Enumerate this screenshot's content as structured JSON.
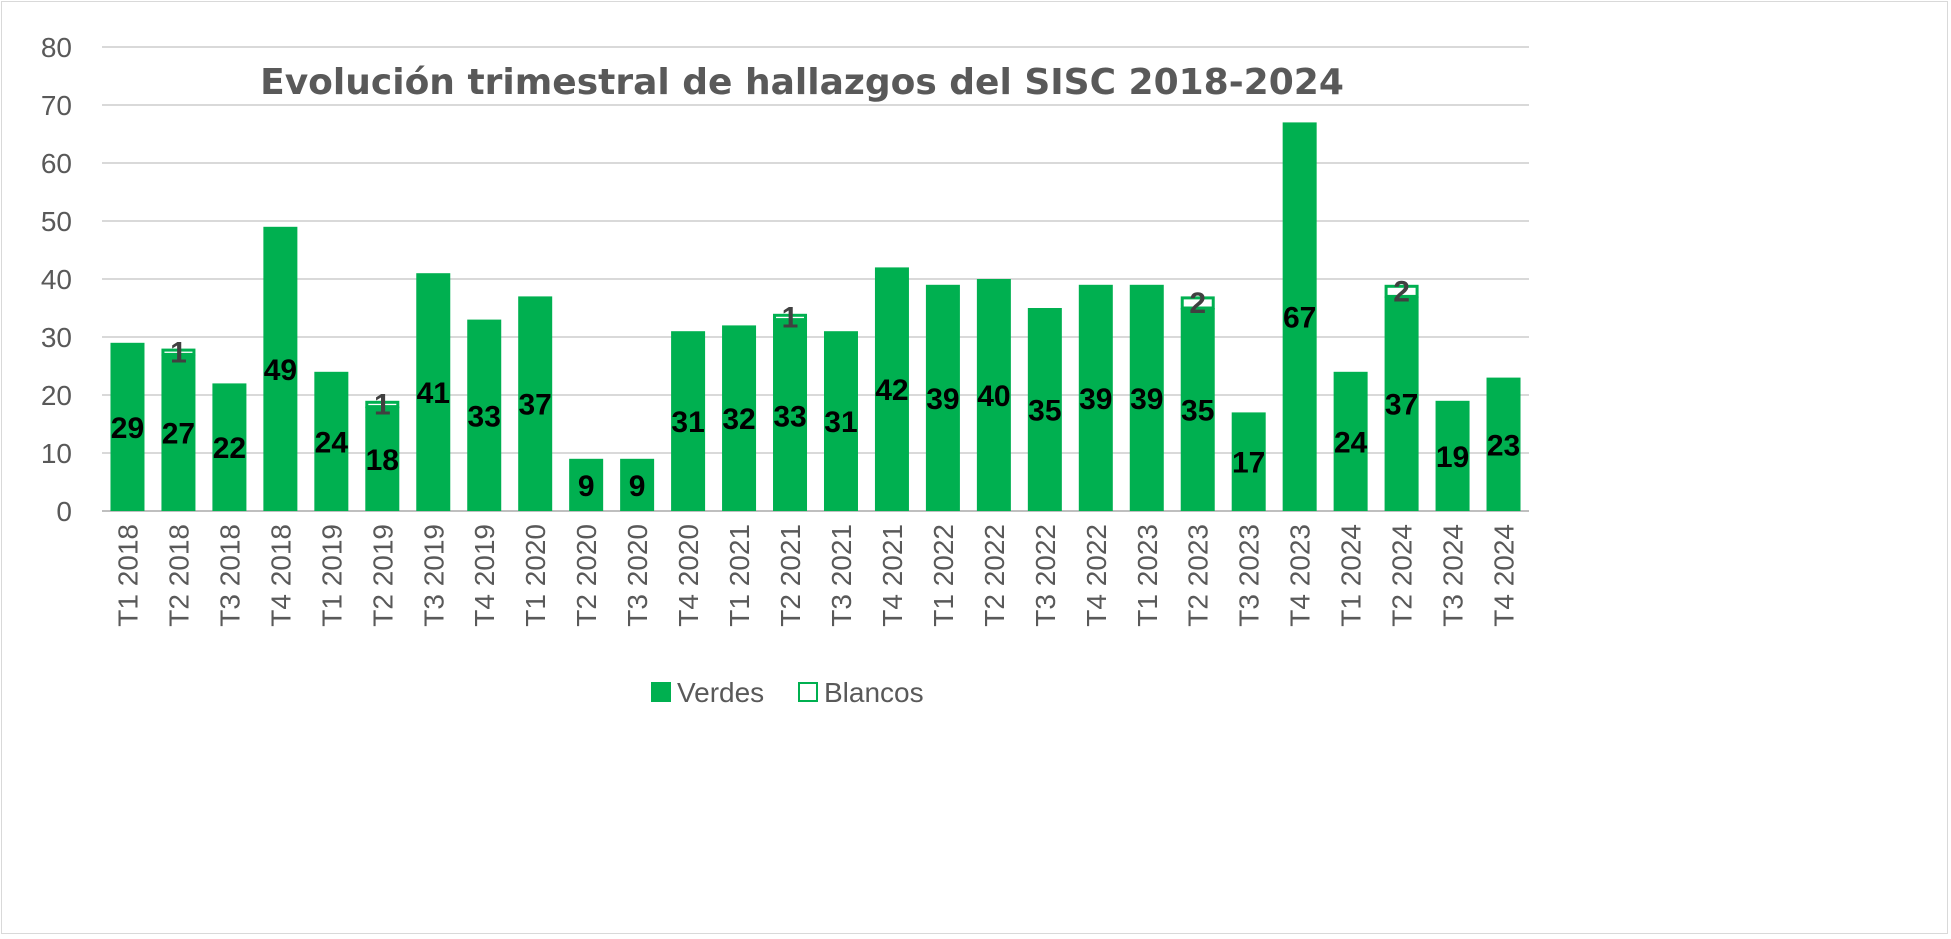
{
  "chart_data": {
    "type": "bar",
    "stacked": true,
    "title": "Evolución trimestral de hallazgos del SISC 2018-2024",
    "xlabel": "",
    "ylabel": "",
    "ylim": [
      0,
      80
    ],
    "yticks": [
      0,
      10,
      20,
      30,
      40,
      50,
      60,
      70,
      80
    ],
    "grid": true,
    "legend_position": "bottom",
    "categories": [
      "T1 2018",
      "T2 2018",
      "T3 2018",
      "T4 2018",
      "T1 2019",
      "T2 2019",
      "T3 2019",
      "T4 2019",
      "T1 2020",
      "T2 2020",
      "T3 2020",
      "T4 2020",
      "T1 2021",
      "T2 2021",
      "T3 2021",
      "T4 2021",
      "T1 2022",
      "T2 2022",
      "T3 2022",
      "T4 2022",
      "T1 2023",
      "T2 2023",
      "T3 2023",
      "T4 2023",
      "T1 2024",
      "T2 2024",
      "T3 2024",
      "T4 2024"
    ],
    "series": [
      {
        "name": "Verdes",
        "color": "#00B050",
        "values": [
          29,
          27,
          22,
          49,
          24,
          18,
          41,
          33,
          37,
          9,
          9,
          31,
          32,
          33,
          31,
          42,
          39,
          40,
          35,
          39,
          39,
          35,
          17,
          67,
          24,
          37,
          19,
          23
        ]
      },
      {
        "name": "Blancos",
        "color": "#FFFFFF",
        "border": "#00B050",
        "values": [
          0,
          1,
          0,
          0,
          0,
          1,
          0,
          0,
          0,
          0,
          0,
          0,
          0,
          1,
          0,
          0,
          0,
          0,
          0,
          0,
          0,
          2,
          0,
          0,
          0,
          2,
          0,
          0
        ]
      }
    ]
  }
}
